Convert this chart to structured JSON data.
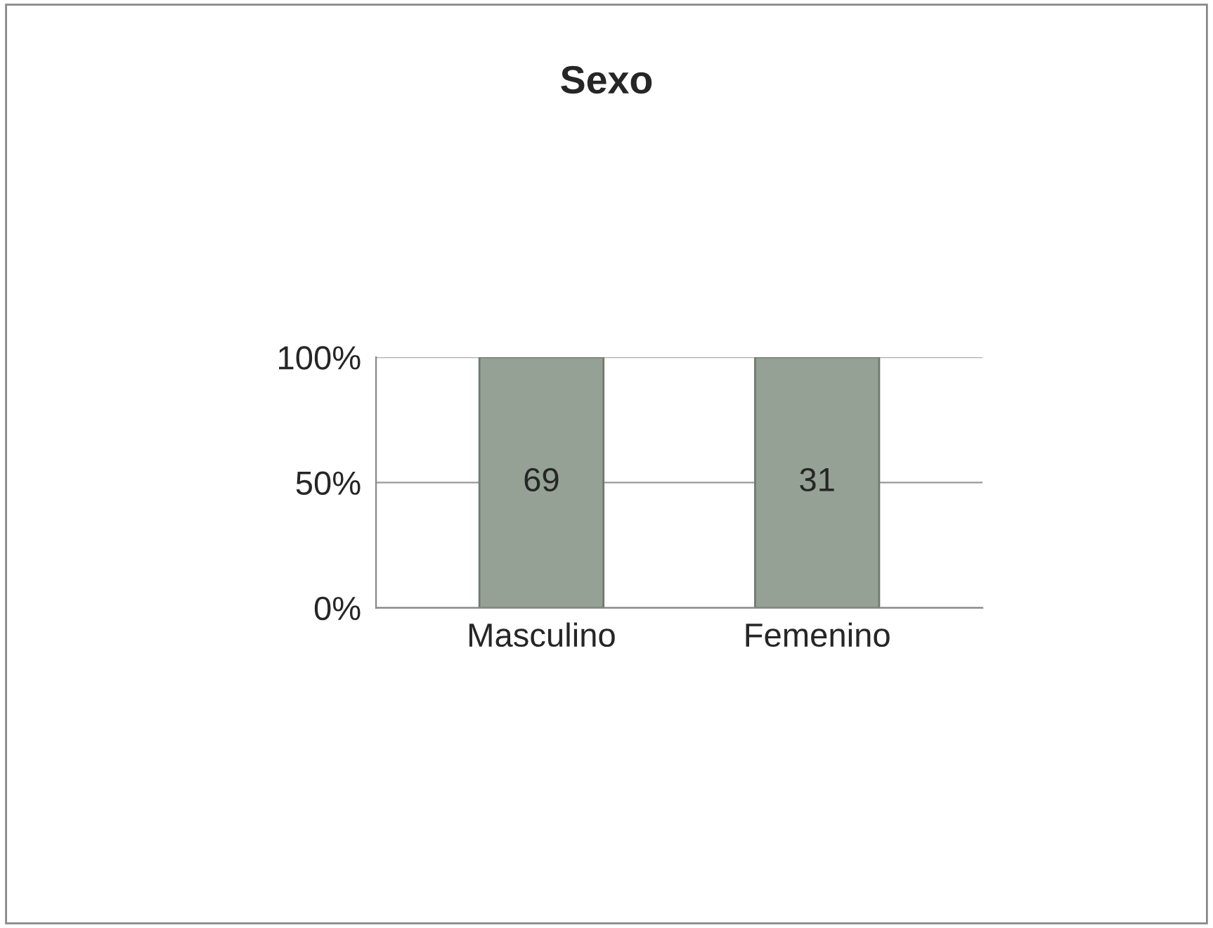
{
  "chart_data": {
    "type": "bar",
    "title": "Sexo",
    "categories": [
      "Masculino",
      "Femenino"
    ],
    "values": [
      100,
      100
    ],
    "annotations": [
      "69",
      "31"
    ],
    "color": "#95a195",
    "ylim": [
      0,
      100
    ],
    "yticks": [
      {
        "value": 0,
        "label": "0%"
      },
      {
        "value": 50,
        "label": "50%"
      },
      {
        "value": 100,
        "label": "100%"
      }
    ],
    "grid": "y"
  }
}
